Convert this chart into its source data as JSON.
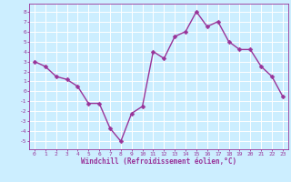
{
  "x": [
    0,
    1,
    2,
    3,
    4,
    5,
    6,
    7,
    8,
    9,
    10,
    11,
    12,
    13,
    14,
    15,
    16,
    17,
    18,
    19,
    20,
    21,
    22,
    23
  ],
  "y": [
    3.0,
    2.5,
    1.5,
    1.2,
    0.5,
    -1.2,
    -1.2,
    -3.7,
    -5.0,
    -2.2,
    -1.5,
    4.0,
    3.3,
    5.5,
    6.0,
    8.0,
    6.5,
    7.0,
    5.0,
    4.2,
    4.2,
    2.5,
    1.5,
    -0.5
  ],
  "line_color": "#993399",
  "marker": "D",
  "marker_size": 2.5,
  "line_width": 1.0,
  "bg_color": "#cceeff",
  "grid_color": "#ffffff",
  "xlabel": "Windchill (Refroidissement éolien,°C)",
  "xlabel_color": "#993399",
  "tick_color": "#993399",
  "ytick_labels": [
    "8",
    "7",
    "6",
    "5",
    "4",
    "3",
    "2",
    "1",
    "0",
    "-1",
    "-2",
    "-3",
    "-4",
    "-5"
  ],
  "ytick_values": [
    8,
    7,
    6,
    5,
    4,
    3,
    2,
    1,
    0,
    -1,
    -2,
    -3,
    -4,
    -5
  ],
  "xlim": [
    -0.5,
    23.5
  ],
  "ylim": [
    -5.8,
    8.8
  ]
}
